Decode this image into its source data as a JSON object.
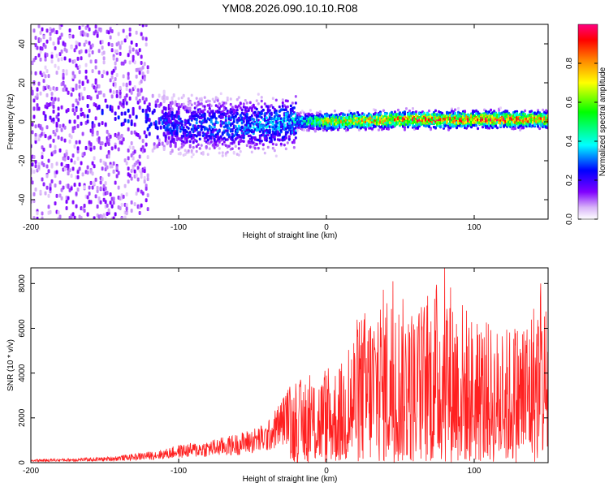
{
  "figure_title": "YM08.2026.090.10.10.R08",
  "chart_data": [
    {
      "type": "heatmap",
      "title": "YM08.2026.090.10.10.R08",
      "xlabel": "Height of straight line (km)",
      "ylabel": "Frequency (Hz)",
      "xlim": [
        -200,
        150
      ],
      "ylim": [
        -50,
        50
      ],
      "xticks": [
        -200,
        -100,
        0,
        100
      ],
      "yticks": [
        -40,
        -20,
        0,
        20,
        40
      ],
      "colorbar": {
        "label": "Normalized spectral amplitude",
        "range": [
          0,
          1
        ],
        "ticks": [
          0.0,
          0.2,
          0.4,
          0.6,
          0.8
        ],
        "colormap": [
          "#ffffff",
          "#d8b4f8",
          "#8000ff",
          "#0000ff",
          "#00ffff",
          "#00ff00",
          "#ffff00",
          "#ff8000",
          "#ff0000",
          "#ff0080"
        ]
      },
      "description_of_trend": {
        "center_frequency_hz": [
          {
            "height_km": -150,
            "freq_hz": 4
          },
          {
            "height_km": -100,
            "freq_hz": -2
          },
          {
            "height_km": -50,
            "freq_hz": -2
          },
          {
            "height_km": -20,
            "freq_hz": 0
          },
          {
            "height_km": 0,
            "freq_hz": 0
          },
          {
            "height_km": 50,
            "freq_hz": 1
          },
          {
            "height_km": 100,
            "freq_hz": 1
          },
          {
            "height_km": 150,
            "freq_hz": 1
          }
        ],
        "peak_amplitude": [
          {
            "height_km": -200,
            "value": 0.15
          },
          {
            "height_km": -150,
            "value": 0.25
          },
          {
            "height_km": -100,
            "value": 0.3
          },
          {
            "height_km": -50,
            "value": 0.35
          },
          {
            "height_km": -20,
            "value": 0.4
          },
          {
            "height_km": 0,
            "value": 0.75
          },
          {
            "height_km": 50,
            "value": 0.9
          },
          {
            "height_km": 100,
            "value": 0.95
          },
          {
            "height_km": 150,
            "value": 0.9
          }
        ]
      }
    },
    {
      "type": "line",
      "title": "",
      "xlabel": "Height of straight line (km)",
      "ylabel": "SNR (10 * v/v)",
      "xlim": [
        -200,
        150
      ],
      "ylim": [
        0,
        8700
      ],
      "xticks": [
        -200,
        -100,
        0,
        100
      ],
      "yticks": [
        0,
        2000,
        4000,
        6000,
        8000
      ],
      "series": [
        {
          "name": "SNR",
          "color": "#ff2020",
          "envelope": [
            {
              "x": -200,
              "y": 150
            },
            {
              "x": -170,
              "y": 200
            },
            {
              "x": -150,
              "y": 250
            },
            {
              "x": -130,
              "y": 400
            },
            {
              "x": -110,
              "y": 600
            },
            {
              "x": -100,
              "y": 800
            },
            {
              "x": -80,
              "y": 1000
            },
            {
              "x": -60,
              "y": 1300
            },
            {
              "x": -40,
              "y": 1800
            },
            {
              "x": -25,
              "y": 3500
            },
            {
              "x": -10,
              "y": 4000
            },
            {
              "x": 0,
              "y": 4200
            },
            {
              "x": 10,
              "y": 4500
            },
            {
              "x": 20,
              "y": 6500
            },
            {
              "x": 40,
              "y": 8000
            },
            {
              "x": 60,
              "y": 7000
            },
            {
              "x": 80,
              "y": 8700
            },
            {
              "x": 100,
              "y": 6500
            },
            {
              "x": 120,
              "y": 6000
            },
            {
              "x": 135,
              "y": 6800
            },
            {
              "x": 145,
              "y": 8000
            },
            {
              "x": 150,
              "y": 7000
            }
          ],
          "notable_peaks": [
            {
              "x": 45,
              "y": 8100
            },
            {
              "x": 80,
              "y": 8700
            },
            {
              "x": 145,
              "y": 8000
            }
          ]
        }
      ]
    }
  ]
}
